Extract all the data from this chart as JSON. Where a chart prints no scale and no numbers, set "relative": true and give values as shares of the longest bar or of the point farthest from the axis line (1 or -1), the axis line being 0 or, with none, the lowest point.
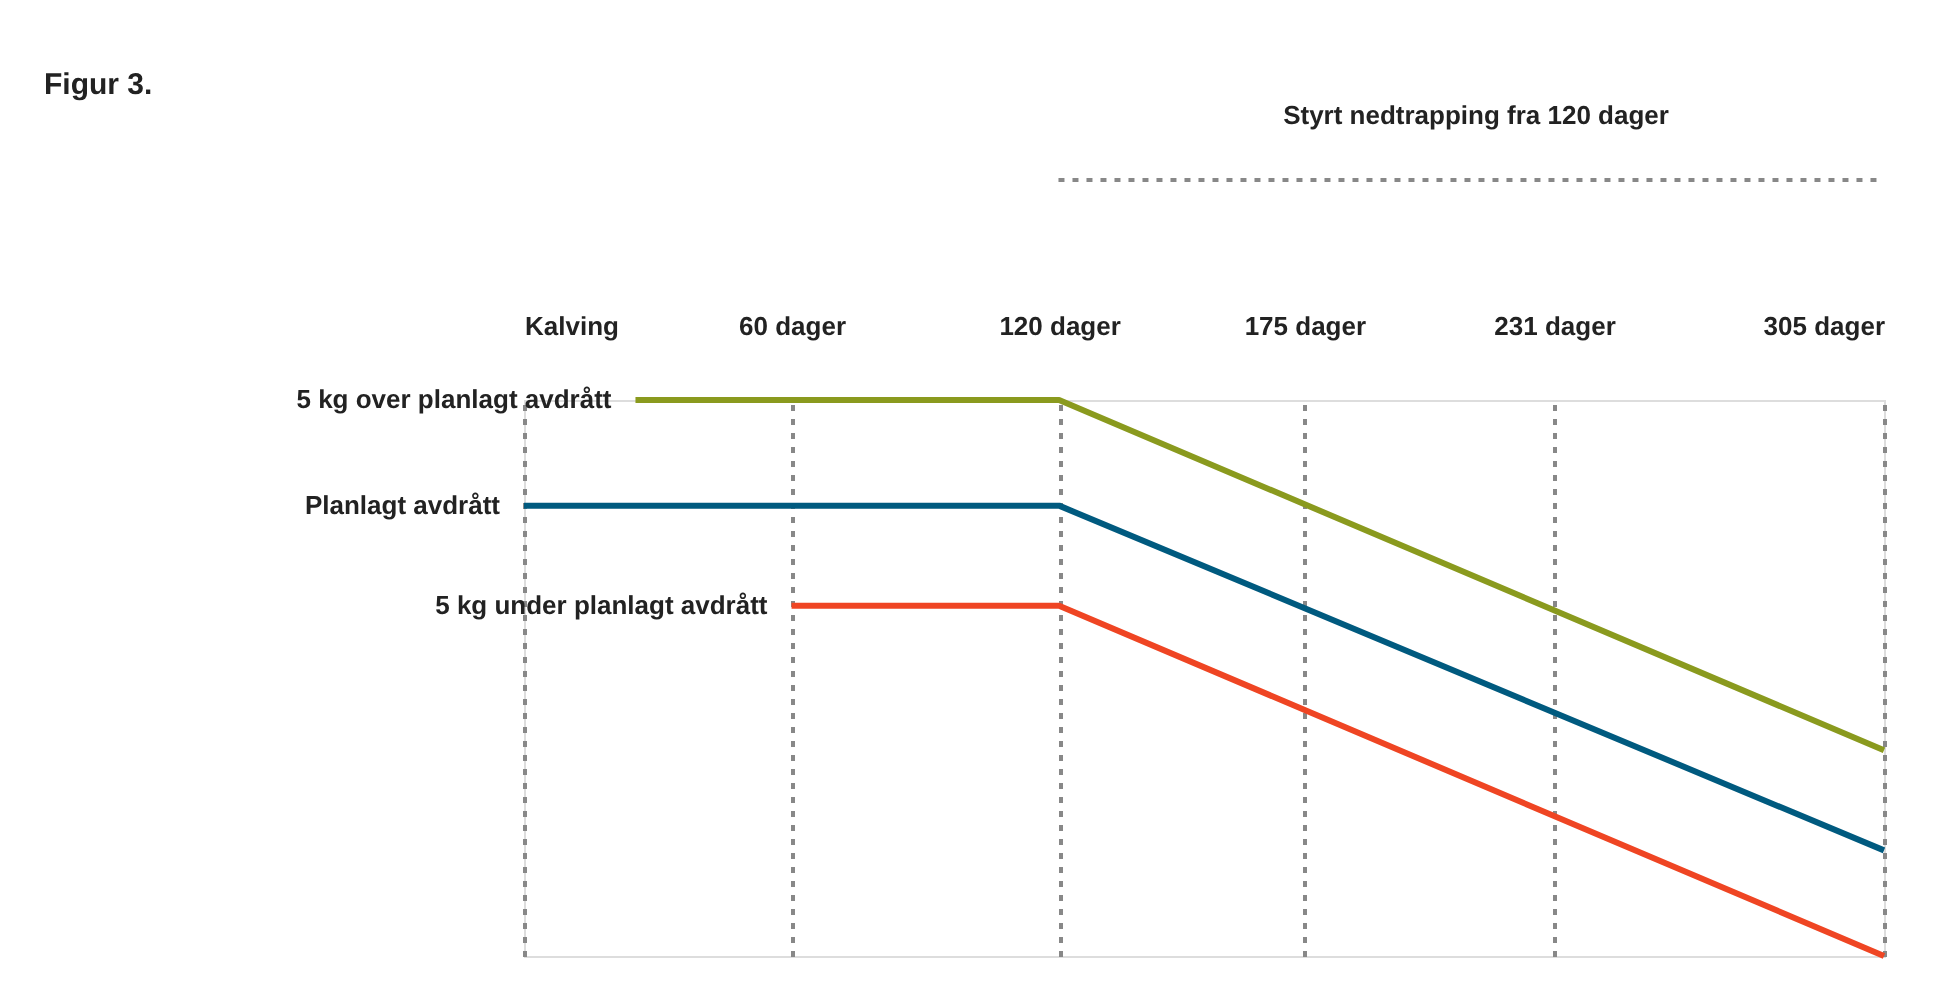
{
  "chart_data": {
    "type": "line",
    "title": "Figur 3.",
    "relative": true,
    "xlim": [
      0,
      305
    ],
    "tick_labels": "x",
    "grid": "x",
    "marker": "none",
    "line_style": "solid",
    "xticks": [
      {
        "value": 0,
        "label": "Kalving"
      },
      {
        "value": 60,
        "label": "60 dager"
      },
      {
        "value": 120,
        "label": "120 dager"
      },
      {
        "value": 175,
        "label": "175 dager"
      },
      {
        "value": 231,
        "label": "231 dager"
      },
      {
        "value": 305,
        "label": "305 dager"
      }
    ],
    "series": [
      {
        "name": "5 kg over planlagt avdrått",
        "color": "#8a9a1e",
        "x": [
          25,
          120,
          305
        ],
        "values": [
          1,
          1,
          0.37
        ]
      },
      {
        "name": "Planlagt avdrått",
        "color": "#005a7f",
        "x": [
          0,
          120,
          305
        ],
        "values": [
          0.81,
          0.81,
          0.19
        ]
      },
      {
        "name": "5 kg under planlagt avdrått",
        "color": "#ef4523",
        "x": [
          60,
          120,
          305
        ],
        "values": [
          0.63,
          0.63,
          0
        ]
      }
    ],
    "annotations": [
      "Styrt nedtrapping fra 120 dager"
    ]
  }
}
